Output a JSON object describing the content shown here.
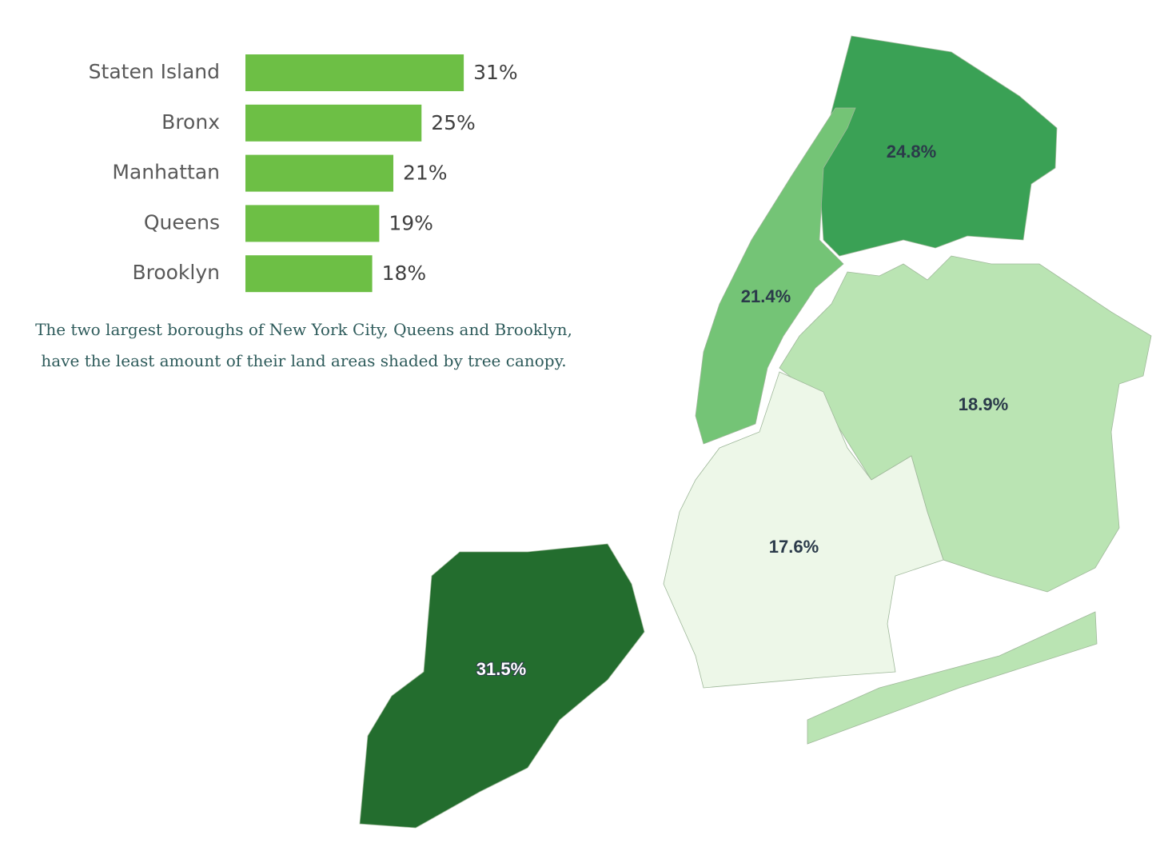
{
  "chart_data": [
    {
      "type": "bar",
      "categories": [
        "Staten Island",
        "Bronx",
        "Manhattan",
        "Queens",
        "Brooklyn"
      ],
      "values": [
        31,
        25,
        21,
        19,
        18
      ],
      "value_labels": [
        "31%",
        "25%",
        "21%",
        "19%",
        "18%"
      ],
      "color": "#6dbf45",
      "caption": "The two largest boroughs of New York City, Queens and Brooklyn, have the least amount of their land areas shaded by tree canopy."
    },
    {
      "type": "map",
      "values": [
        24.8,
        21.4,
        18.9,
        17.6,
        31.5
      ],
      "value_labels": [
        "24.8%",
        "21.4%",
        "18.9%",
        "17.6%",
        "31.5%"
      ],
      "colors": [
        "#3aa155",
        "#74c476",
        "#bae4b3",
        "#edf7e8",
        "#236d2e"
      ]
    }
  ]
}
